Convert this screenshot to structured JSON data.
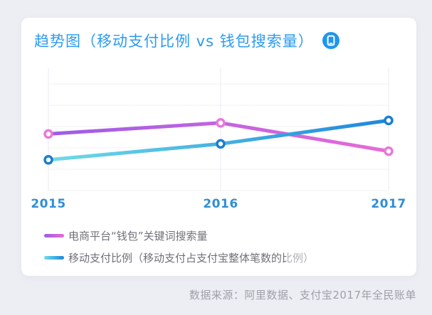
{
  "page": {
    "title": "趋势图（移动支付比例 vs 钱包搜索量）",
    "title_icon": "mobile-phone-icon",
    "source_note": "数据来源：阿里数据、支付宝2017年全民账单",
    "colors": {
      "page_bg": "#EDEEF4",
      "card_bg": "#FFFFFF",
      "title_blue": "#2B9BF2",
      "axis_label_blue": "#2F8FD4",
      "legend_text": "#70707A",
      "source_text": "#9FA0A8",
      "grid_horizontal": "#F2F2F6",
      "grid_vertical": "#EBEBF2",
      "icon_circle_blue": "#1E96EE"
    }
  },
  "chart_data": {
    "type": "line",
    "title": "趋势图（移动支付比例 vs 钱包搜索量）",
    "x": [
      "2015",
      "2016",
      "2017"
    ],
    "series": [
      {
        "name": "电商平台“钱包”关键词搜索量",
        "values": [
          46,
          55,
          32
        ],
        "color_start": "#9C5CE6",
        "color_end": "#E96AD8",
        "point_color": "#E878DC"
      },
      {
        "name": "移动支付比例（移动支付占支付宝整体笔数的比例）",
        "values": [
          25,
          38,
          57
        ],
        "color_start": "#6FDCE8",
        "color_end": "#1E87DC",
        "point_color": "#1C7ECE"
      }
    ],
    "xlabel": "",
    "ylabel": "",
    "ylim": [
      0,
      100
    ],
    "grid": true,
    "legend_position": "bottom-left"
  }
}
